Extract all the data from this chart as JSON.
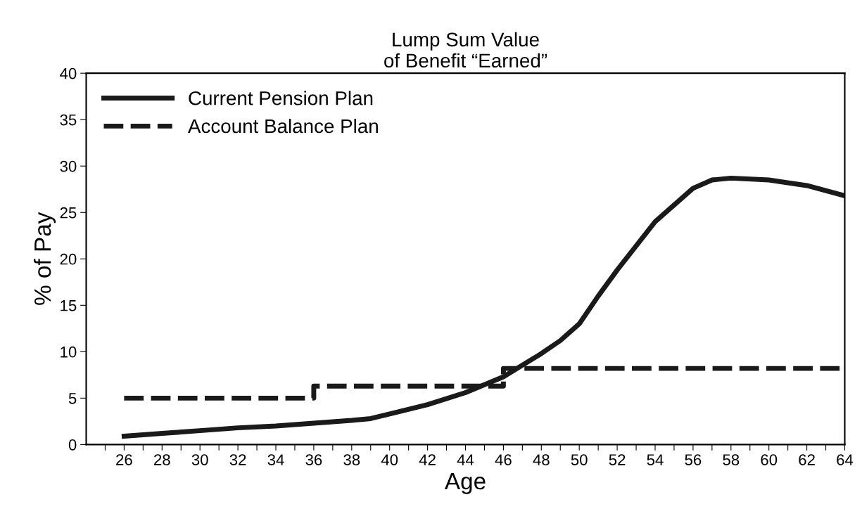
{
  "chart_data": {
    "type": "line",
    "title": "Lump Sum Value\nof Benefit “Earned”",
    "xlabel": "Age",
    "ylabel": "% of Pay",
    "xlim": [
      24,
      64
    ],
    "ylim": [
      0,
      40
    ],
    "xticks": [
      {
        "value": 25,
        "label": null
      },
      26,
      {
        "value": 27,
        "label": null
      },
      28,
      {
        "value": 29,
        "label": null
      },
      30,
      {
        "value": 31,
        "label": null
      },
      32,
      {
        "value": 33,
        "label": null
      },
      34,
      {
        "value": 35,
        "label": null
      },
      36,
      {
        "value": 37,
        "label": null
      },
      38,
      {
        "value": 39,
        "label": null
      },
      40,
      {
        "value": 41,
        "label": null
      },
      42,
      {
        "value": 43,
        "label": null
      },
      44,
      {
        "value": 45,
        "label": null
      },
      46,
      {
        "value": 47,
        "label": null
      },
      48,
      {
        "value": 49,
        "label": null
      },
      50,
      {
        "value": 51,
        "label": null
      },
      52,
      {
        "value": 53,
        "label": null
      },
      54,
      {
        "value": 55,
        "label": null
      },
      56,
      {
        "value": 57,
        "label": null
      },
      58,
      {
        "value": 59,
        "label": null
      },
      60,
      {
        "value": 61,
        "label": null
      },
      62,
      {
        "value": 63,
        "label": null
      },
      64
    ],
    "yticks": [
      0,
      5,
      10,
      15,
      20,
      25,
      30,
      35,
      40
    ],
    "grid": false,
    "legend": "top left",
    "series": [
      {
        "name": "Current Pension Plan",
        "color": "#1a1a1a",
        "line_style": "solid",
        "x": [
          26,
          28,
          30,
          32,
          34,
          36,
          38,
          39,
          40,
          42,
          44,
          46,
          48,
          49,
          50,
          51,
          52,
          54,
          56,
          57,
          58,
          60,
          62,
          64
        ],
        "values": [
          0.9,
          1.2,
          1.5,
          1.8,
          2.0,
          2.3,
          2.6,
          2.8,
          3.3,
          4.3,
          5.6,
          7.3,
          9.8,
          11.2,
          13.0,
          16.0,
          18.8,
          24.0,
          27.6,
          28.5,
          28.7,
          28.5,
          27.9,
          26.8
        ]
      },
      {
        "name": "Account Balance Plan",
        "type": "step",
        "color": "#1a1a1a",
        "line_style": "dashed",
        "x": [
          26,
          36,
          46,
          64
        ],
        "values": [
          5.0,
          6.3,
          8.2,
          8.2
        ]
      }
    ]
  }
}
